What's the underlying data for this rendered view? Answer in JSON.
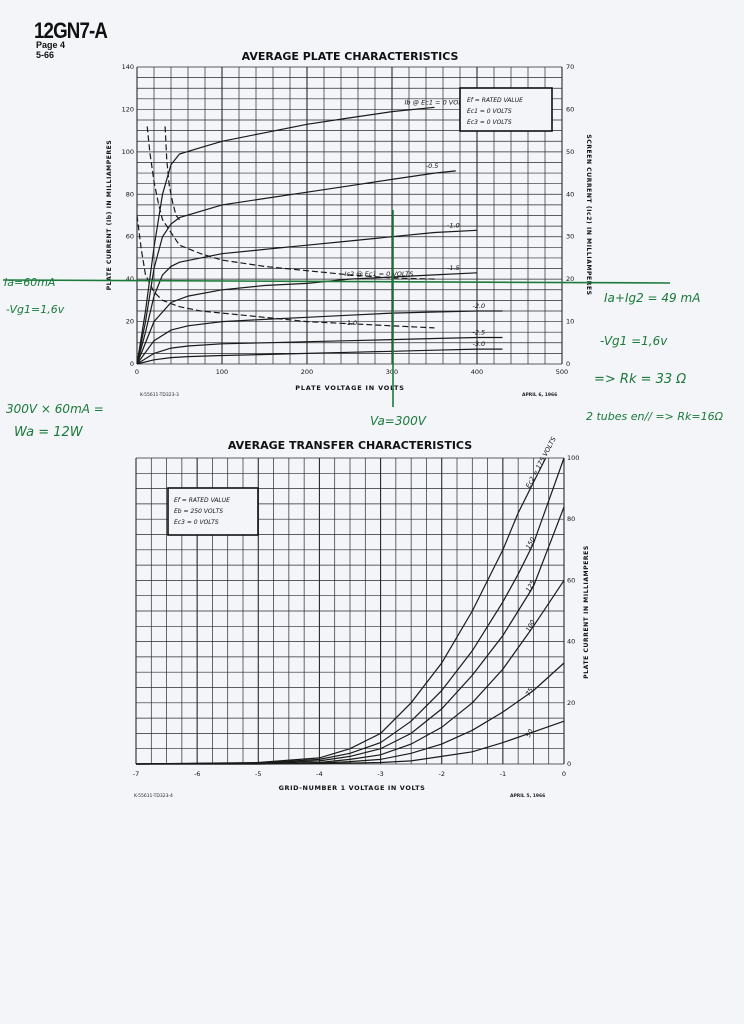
{
  "header": {
    "tube_type": "12GN7-A",
    "page": "Page 4",
    "date": "5-66"
  },
  "colors": {
    "grid": "#2a2a2a",
    "curve": "#1a1a1a",
    "ink": "#1b7a3a",
    "paper": "#f3f5f9"
  },
  "chart_data": [
    {
      "type": "line",
      "title": "AVERAGE PLATE CHARACTERISTICS",
      "xlabel": "PLATE VOLTAGE IN VOLTS",
      "ylabel": "PLATE CURRENT (Ib) IN MILLIAMPERES",
      "y2label": "SCREEN CURRENT (Ic2) IN MILLIAMPERES",
      "xlim": [
        0,
        500
      ],
      "ylim": [
        0,
        140
      ],
      "y2lim": [
        0,
        70
      ],
      "xticks": [
        "0",
        "100",
        "200",
        "300",
        "400",
        "500"
      ],
      "yticks": [
        "0",
        "20",
        "40",
        "60",
        "80",
        "100",
        "120",
        "140"
      ],
      "y2ticks": [
        "0",
        "10",
        "20",
        "30",
        "40",
        "50",
        "60",
        "70"
      ],
      "grid": true,
      "legend_box": [
        "Ef = RATED VALUE",
        "Ec1 = 0 VOLTS",
        "Ec3 = 0 VOLTS"
      ],
      "legend_placement": "top-right",
      "drawing_number": "K-55611-TD323-3",
      "print_date": "APRIL 6, 1966",
      "series": [
        {
          "name": "Ib @ Ec1 = 0 VOLTS",
          "style": "solid",
          "label": "Ib @ Ec1 = 0 VOLTS",
          "x": [
            0,
            10,
            20,
            30,
            40,
            50,
            75,
            100,
            150,
            200,
            250,
            300,
            350
          ],
          "y": [
            0,
            25,
            55,
            80,
            94,
            99,
            102,
            105,
            109,
            113,
            116,
            119,
            121
          ]
        },
        {
          "name": "-0.5",
          "style": "solid",
          "label": "-0.5",
          "x": [
            0,
            10,
            20,
            30,
            40,
            50,
            100,
            150,
            200,
            250,
            300,
            350,
            375
          ],
          "y": [
            0,
            20,
            45,
            60,
            66,
            69,
            75,
            78,
            81,
            84,
            87,
            90,
            91
          ]
        },
        {
          "name": "-1.0",
          "style": "solid",
          "label": "-1.0",
          "x": [
            0,
            10,
            20,
            30,
            40,
            50,
            100,
            150,
            200,
            250,
            300,
            350,
            400
          ],
          "y": [
            0,
            15,
            32,
            42,
            46,
            48,
            52,
            54,
            56,
            58,
            60,
            62,
            63
          ]
        },
        {
          "name": "-1.5",
          "style": "solid",
          "label": "-1.5",
          "x": [
            0,
            20,
            40,
            60,
            100,
            150,
            200,
            250,
            300,
            350,
            400
          ],
          "y": [
            0,
            20,
            29,
            32,
            35,
            37,
            38,
            40,
            41,
            42,
            43
          ]
        },
        {
          "name": "-2.0",
          "style": "solid",
          "label": "-2.0",
          "x": [
            0,
            20,
            40,
            60,
            100,
            150,
            200,
            250,
            300,
            350,
            400,
            430
          ],
          "y": [
            0,
            11,
            16,
            18,
            20,
            21,
            22,
            23,
            24,
            24.5,
            25,
            25
          ]
        },
        {
          "name": "-2.5",
          "style": "solid",
          "label": "-2.5",
          "x": [
            0,
            20,
            40,
            60,
            100,
            150,
            200,
            250,
            300,
            350,
            400,
            430
          ],
          "y": [
            0,
            5,
            7.5,
            8.5,
            9.5,
            10,
            10.5,
            11,
            11.5,
            12,
            12.5,
            12.5
          ]
        },
        {
          "name": "-3.0",
          "style": "solid",
          "label": "-3.0",
          "x": [
            0,
            20,
            40,
            60,
            100,
            150,
            200,
            250,
            300,
            350,
            400,
            430
          ],
          "y": [
            0,
            2,
            3,
            3.5,
            4,
            4.5,
            5,
            5.5,
            6,
            6.5,
            7,
            7
          ]
        },
        {
          "name": "Ic2 @ Ec1 = 0 VOLTS",
          "style": "dashed",
          "label": "Ic2 @ Ec1 = 0 VOLTS",
          "axis": "y2",
          "x": [
            12,
            15,
            20,
            25,
            30,
            40,
            50,
            75,
            100,
            150,
            200,
            250,
            300,
            350
          ],
          "y2": [
            56,
            50,
            43,
            38,
            34,
            31,
            28,
            26,
            24.5,
            23,
            22,
            21,
            20.3,
            20
          ]
        },
        {
          "name": "Ic2 @ Ec1 = 0 VOLTS (upper branch)",
          "style": "dashed",
          "label": "",
          "axis": "y2",
          "x": [
            33,
            35,
            38,
            42,
            46,
            50
          ],
          "y2": [
            56,
            48,
            42,
            38,
            35,
            34
          ]
        },
        {
          "name": "Ic2 @ Ec1 = -1.0",
          "style": "dashed",
          "label": "-1.0",
          "axis": "y2",
          "x": [
            0,
            5,
            10,
            20,
            30,
            50,
            75,
            100,
            150,
            200,
            250,
            300,
            350
          ],
          "y2": [
            35,
            27,
            21,
            17,
            15,
            13.5,
            12.5,
            12,
            11,
            10,
            9.5,
            9,
            8.5
          ]
        }
      ],
      "annotations": [
        {
          "text": "Ef = RATED VALUE"
        },
        {
          "text": "Ec1 = 0 VOLTS"
        },
        {
          "text": "Ec3 = 0 VOLTS"
        }
      ]
    },
    {
      "type": "line",
      "title": "AVERAGE TRANSFER CHARACTERISTICS",
      "xlabel": "GRID-NUMBER 1 VOLTAGE IN VOLTS",
      "ylabel": "PLATE CURRENT IN MILLIAMPERES",
      "xlim": [
        -7,
        0
      ],
      "ylim": [
        0,
        100
      ],
      "xticks": [
        "-7",
        "-6",
        "-5",
        "-4",
        "-3",
        "-2",
        "-1",
        "0"
      ],
      "yticks": [
        "0",
        "20",
        "40",
        "60",
        "80",
        "100"
      ],
      "grid": true,
      "legend_box": [
        "Ef = RATED VALUE",
        "Eb = 250 VOLTS",
        "Ec3 = 0 VOLTS"
      ],
      "legend_placement": "top-left",
      "drawing_number": "K-55611-TD323-4",
      "print_date": "APRIL 5, 1966",
      "series": [
        {
          "name": "Ec2 = 175 VOLTS",
          "label": "Ec2 = 175 VOLTS",
          "x": [
            -7,
            -5,
            -4,
            -3.5,
            -3,
            -2.5,
            -2,
            -1.5,
            -1,
            -0.75,
            -0.5,
            -0.3
          ],
          "y": [
            0,
            0.5,
            2,
            5,
            10,
            20,
            33,
            50,
            70,
            82,
            92,
            100
          ]
        },
        {
          "name": "150",
          "label": "150",
          "x": [
            -7,
            -5,
            -4,
            -3.5,
            -3,
            -2.5,
            -2,
            -1.5,
            -1,
            -0.75,
            -0.5,
            0
          ],
          "y": [
            0,
            0.3,
            1.5,
            3.5,
            7,
            14,
            24,
            37,
            53,
            62,
            72,
            100
          ]
        },
        {
          "name": "125",
          "label": "125",
          "x": [
            -7,
            -5,
            -4,
            -3.5,
            -3,
            -2.5,
            -2,
            -1.5,
            -1,
            -0.5,
            0
          ],
          "y": [
            0,
            0.2,
            1,
            2.5,
            5,
            10,
            18,
            29,
            42,
            58,
            84
          ]
        },
        {
          "name": "100",
          "label": "100",
          "x": [
            -7,
            -5,
            -4,
            -3.5,
            -3,
            -2.5,
            -2,
            -1.5,
            -1,
            -0.5,
            0
          ],
          "y": [
            0,
            0.1,
            0.5,
            1.5,
            3,
            6.5,
            12,
            20,
            31,
            45,
            60
          ]
        },
        {
          "name": "75",
          "label": "75",
          "x": [
            -7,
            -5,
            -4,
            -3.5,
            -3,
            -2.5,
            -2,
            -1.5,
            -1,
            -0.5,
            0
          ],
          "y": [
            0,
            0,
            0.3,
            0.8,
            1.5,
            3.5,
            6.5,
            11,
            17,
            24,
            33
          ]
        },
        {
          "name": "50",
          "label": "50",
          "x": [
            -7,
            -5,
            -4,
            -3,
            -2.5,
            -2,
            -1.5,
            -1,
            -0.5,
            0
          ],
          "y": [
            0,
            0,
            0.1,
            0.5,
            1,
            2.5,
            4,
            7,
            10.5,
            14
          ]
        }
      ]
    }
  ],
  "handwritten_notes": {
    "ia": "Ia=60mA",
    "vg1_left": "-Vg1=1,6v",
    "ia_ig2": "Ia+Ig2 = 49 mA",
    "vg1_right": "-Vg1 =1,6v",
    "rk": "=> Rk = 33 Ω",
    "power1": "300V × 60mA =",
    "power2": "Wa = 12W",
    "va": "Va=300V",
    "tubes": "2 tubes en// => Rk=16Ω"
  }
}
